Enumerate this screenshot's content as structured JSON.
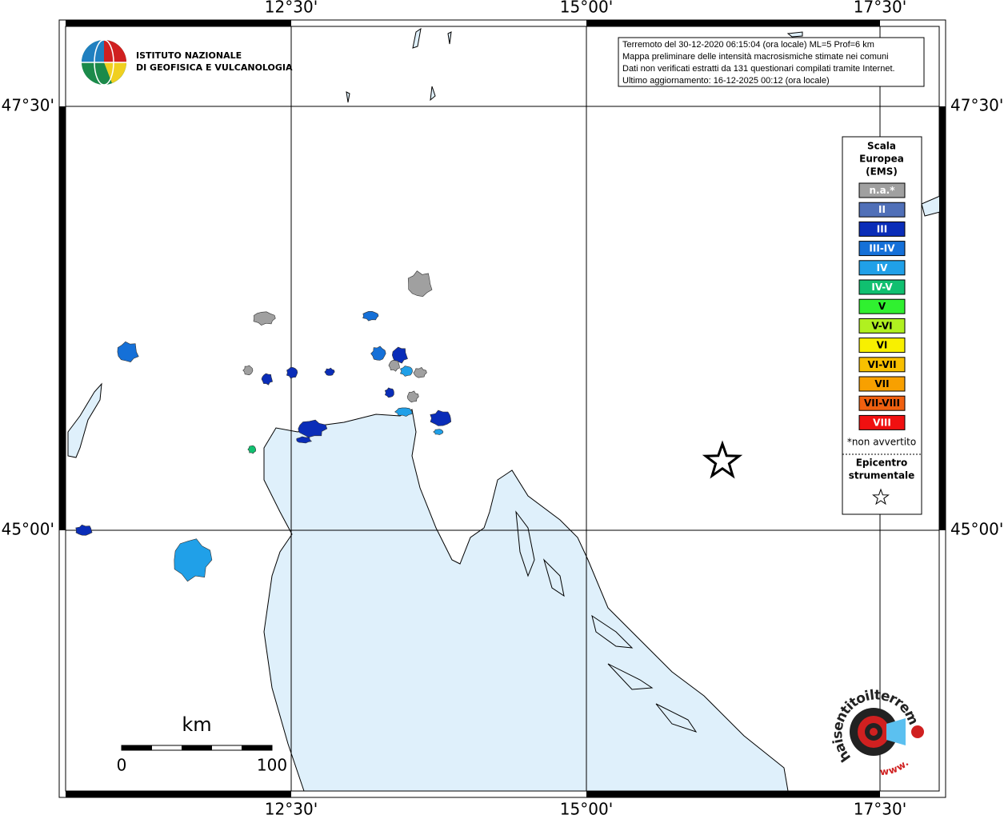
{
  "map": {
    "lon_labels": [
      "12°30'",
      "15°00'",
      "17°30'"
    ],
    "lat_labels": [
      "47°30'",
      "45°00'"
    ],
    "info": [
      "Terremoto del 30-12-2020 06:15:04 (ora locale) ML=5 Prof=6 km",
      "Mappa preliminare delle intensità macrosismiche stimate nei comuni",
      "Dati non verificati estratti da 131 questionari compilati tramite Internet.",
      "Ultimo aggiornamento: 16-12-2025 00:12 (ora locale)"
    ],
    "institute": [
      "ISTITUTO NAZIONALE",
      "DI GEOFISICA E VULCANOLOGIA"
    ],
    "legend": {
      "title": [
        "Scala",
        "Europea",
        "(EMS)"
      ],
      "items": [
        {
          "label": "n.a.*",
          "color": "#a0a0a0",
          "text_color": "#ffffff"
        },
        {
          "label": "II",
          "color": "#5070b8",
          "text_color": "#ffffff"
        },
        {
          "label": "III",
          "color": "#0a2db8",
          "text_color": "#ffffff"
        },
        {
          "label": "III-IV",
          "color": "#1570d8",
          "text_color": "#ffffff"
        },
        {
          "label": "IV",
          "color": "#20a0e8",
          "text_color": "#ffffff"
        },
        {
          "label": "IV-V",
          "color": "#10c070",
          "text_color": "#ffffff"
        },
        {
          "label": "V",
          "color": "#30f030",
          "text_color": "#000000"
        },
        {
          "label": "V-VI",
          "color": "#b0f020",
          "text_color": "#000000"
        },
        {
          "label": "VI",
          "color": "#f8f000",
          "text_color": "#000000"
        },
        {
          "label": "VI-VII",
          "color": "#f8c000",
          "text_color": "#000000"
        },
        {
          "label": "VII",
          "color": "#f8a000",
          "text_color": "#000000"
        },
        {
          "label": "VII-VIII",
          "color": "#f06010",
          "text_color": "#000000"
        },
        {
          "label": "VIII",
          "color": "#f01010",
          "text_color": "#ffffff"
        }
      ],
      "note": "*non avvertito",
      "epicenter_title": [
        "Epicentro",
        "strumentale"
      ]
    },
    "scale": {
      "unit": "km",
      "labels": [
        "0",
        "100"
      ]
    },
    "brand": "haisentitoilterremoto.it",
    "brand_sub": "www."
  }
}
